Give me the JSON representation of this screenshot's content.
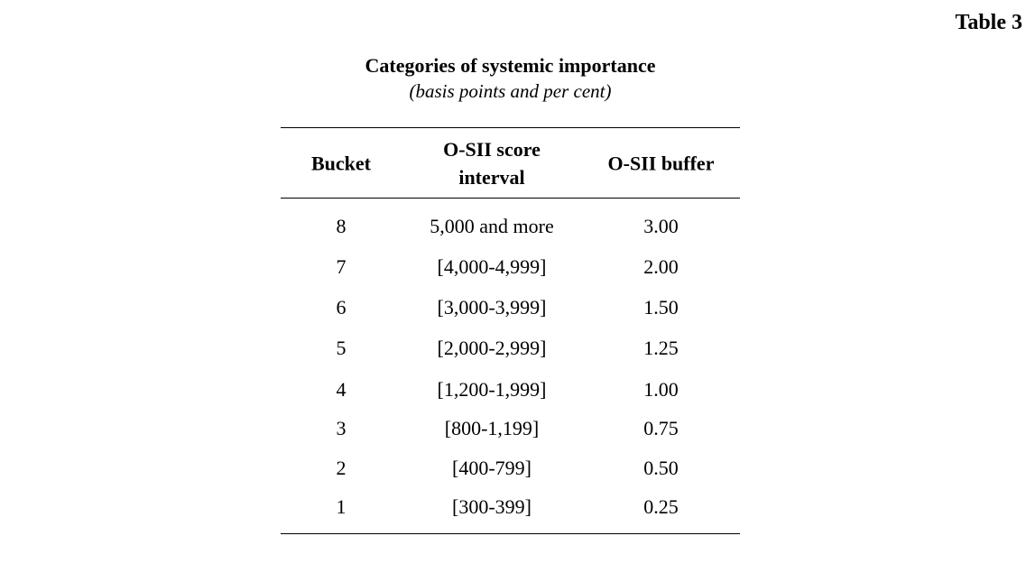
{
  "table_label": "Table 3",
  "title": "Categories of systemic importance",
  "subtitle": "(basis points and per cent)",
  "headers": [
    "Bucket",
    "O-SII score interval",
    "O-SII buffer"
  ],
  "header_lines": {
    "score_line1": "O-SII score",
    "score_line2": "interval"
  },
  "rows": [
    [
      "8",
      "5,000 and more",
      "3.00"
    ],
    [
      "7",
      "[4,000-4,999]",
      "2.00"
    ],
    [
      "6",
      "[3,000-3,999]",
      "1.50"
    ],
    [
      "5",
      "[2,000-2,999]",
      "1.25"
    ],
    [
      "4",
      "[1,200-1,999]",
      "1.00"
    ],
    [
      "3",
      "[800-1,199]",
      "0.75"
    ],
    [
      "2",
      "[400-799]",
      "0.50"
    ],
    [
      "1",
      "[300-399]",
      "0.25"
    ]
  ]
}
